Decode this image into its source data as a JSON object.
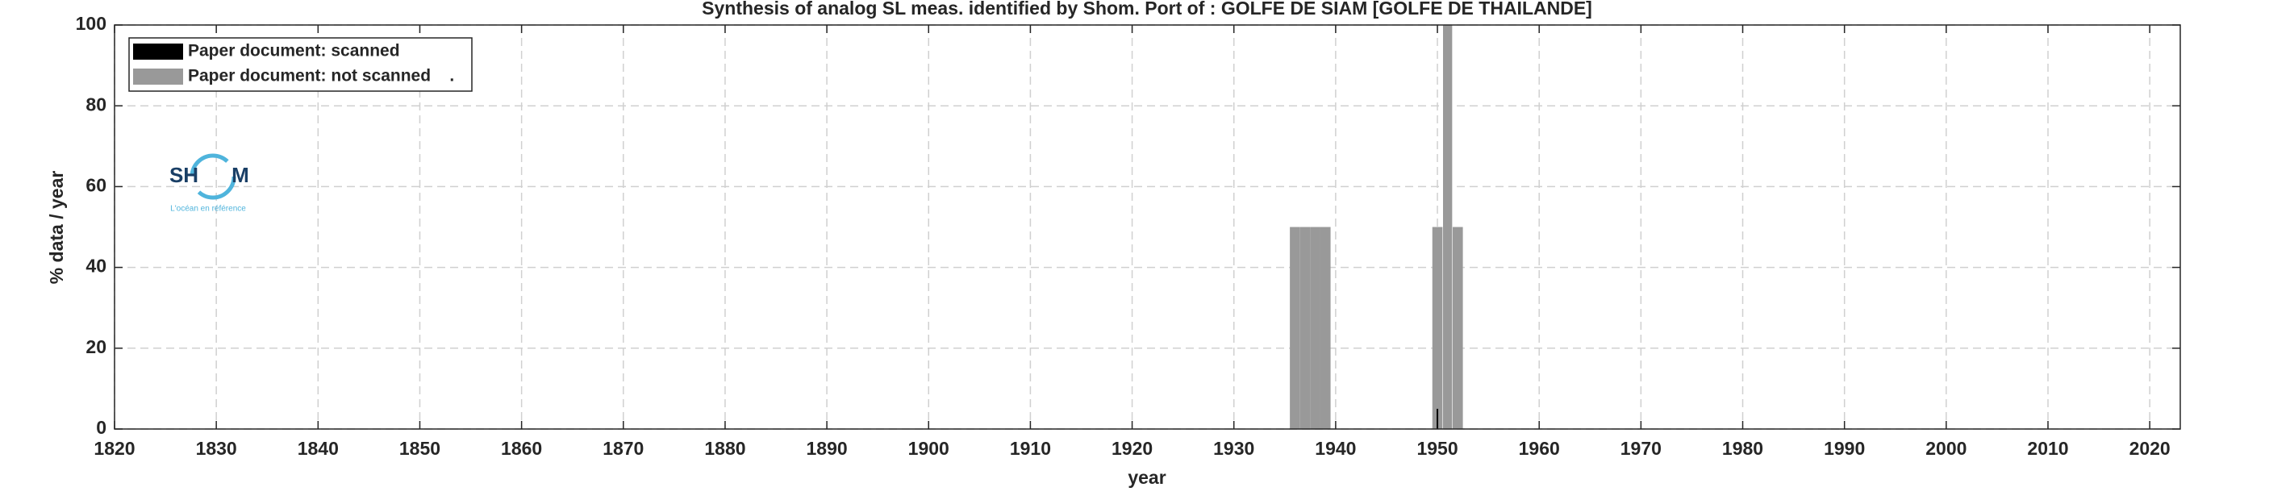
{
  "chart_data": {
    "type": "bar",
    "title": "Synthesis of analog SL meas. identified by Shom. Port of : GOLFE DE SIAM [GOLFE DE THAILANDE]",
    "x_label": "year",
    "y_label": "% data / year",
    "x": [
      1936,
      1937,
      1938,
      1939,
      1950,
      1951,
      1952
    ],
    "series": [
      {
        "name": "Paper document: scanned",
        "color": "#000000",
        "values": [
          null,
          null,
          null,
          null,
          5,
          null,
          null
        ]
      },
      {
        "name": "Paper document: not scanned    .",
        "color": "#999999",
        "values": [
          50,
          50,
          50,
          50,
          50,
          100,
          50
        ]
      }
    ],
    "xlim": [
      1820,
      2023
    ],
    "xticks": [
      1820,
      1830,
      1840,
      1850,
      1860,
      1870,
      1880,
      1890,
      1900,
      1910,
      1920,
      1930,
      1940,
      1950,
      1960,
      1970,
      1980,
      1990,
      2000,
      2010,
      2020
    ],
    "ylim": [
      0,
      100
    ],
    "yticks": [
      0,
      20,
      40,
      60,
      80,
      100
    ],
    "grid": true,
    "legend": "upper left",
    "logo": {
      "left": "SH",
      "right": "M",
      "tagline": "L'océan en référence"
    }
  }
}
